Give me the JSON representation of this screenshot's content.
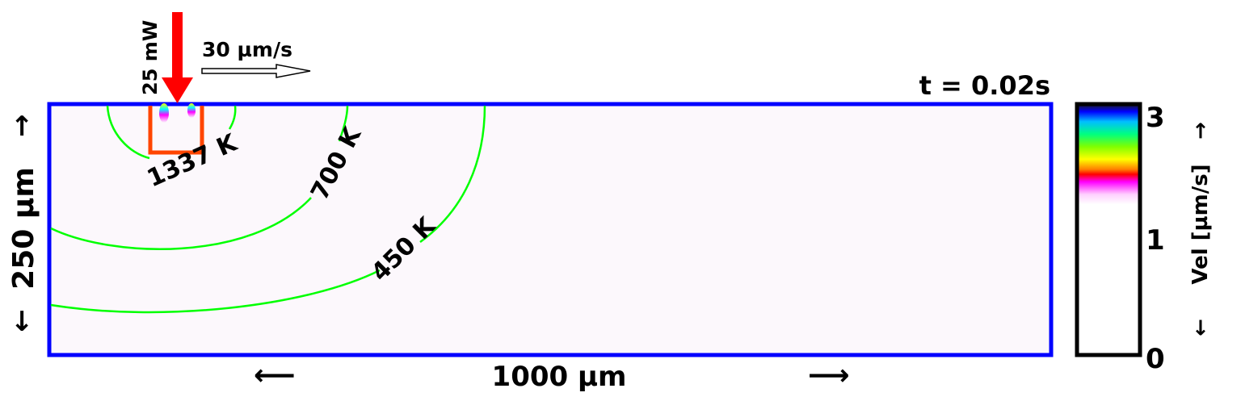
{
  "laser": {
    "power_label": "25 mW",
    "speed_label": "30 µm/s",
    "color": "#ff0000"
  },
  "time_label": "t = 0.02s",
  "domain": {
    "width_label": "1000 µm",
    "height_label": "250 µm",
    "width_arrow_left": "⟵",
    "width_arrow_right": "⟶",
    "height_arrow_up": "↑",
    "height_arrow_down": "↓",
    "border_color": "#0000ff",
    "fill_color": "#fcf8fc"
  },
  "melt_pool": {
    "color": "#ff4500"
  },
  "isotherms": {
    "color": "#00ff00",
    "labels": [
      "1337 K",
      "700 K",
      "450 K"
    ]
  },
  "colorbar": {
    "label": "Vel [µm/s]",
    "arrow_up": "→",
    "arrow_down": "←",
    "ticks": [
      "3",
      "1",
      "0"
    ],
    "colors": [
      "#000000",
      "#0000ff",
      "#00ffff",
      "#00ff00",
      "#ffff00",
      "#ff0000",
      "#ff00ff",
      "#ffffff"
    ]
  }
}
